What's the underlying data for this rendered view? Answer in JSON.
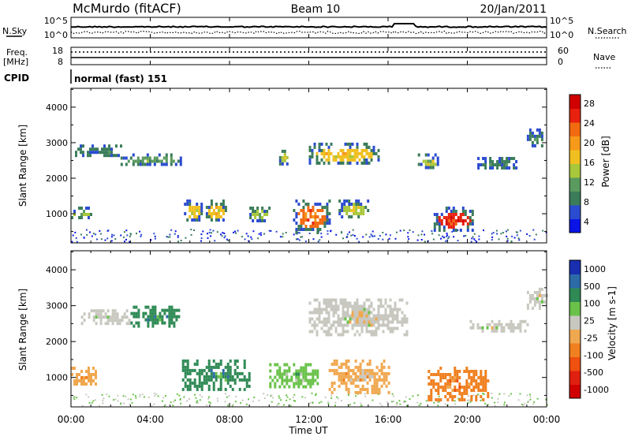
{
  "header": {
    "station": "McMurdo (fitACF)",
    "beam": "Beam 10",
    "date": "20/Jan/2011"
  },
  "noise_panel": {
    "left_label": "N.Sky",
    "right_label": "N.Search",
    "left_ticks": [
      "10^5",
      "10^0"
    ],
    "right_ticks": [
      "10^5",
      "10^0"
    ]
  },
  "freq_panel": {
    "left_label_1": "Freq.",
    "left_label_2": "[MHz]",
    "right_label": "Nave",
    "left_ticks": [
      "18",
      "8"
    ],
    "right_ticks": [
      "60",
      "0"
    ]
  },
  "cpid_panel": {
    "label": "CPID",
    "mode_text": "normal (fast) 151"
  },
  "x_axis": {
    "title": "Time UT",
    "ticks": [
      "00:00",
      "04:00",
      "08:00",
      "12:00",
      "16:00",
      "20:00",
      "00:00"
    ]
  },
  "chart_data": [
    {
      "type": "heatmap",
      "quantity": "power",
      "ylabel": "Slant Range [km]",
      "ylim": [
        180,
        4530
      ],
      "yticks": [
        1000,
        2000,
        3000,
        4000
      ],
      "x_hours": [
        0,
        24
      ],
      "colorbar": {
        "label": "Power [dB]",
        "ticks": [
          4,
          8,
          12,
          16,
          20,
          24,
          28
        ],
        "colors": [
          "#0a14e6",
          "#2b4bd0",
          "#3b7c5a",
          "#5a9a5e",
          "#a8c73a",
          "#f0c020",
          "#f79a1a",
          "#f26a10",
          "#e8200e",
          "#d00000"
        ]
      },
      "echo_regions": [
        {
          "t0": 0.0,
          "t1": 1.0,
          "r0": 900,
          "r1": 1200,
          "level": 12
        },
        {
          "t0": 0.2,
          "t1": 2.5,
          "r0": 2600,
          "r1": 2950,
          "level": 6
        },
        {
          "t0": 2.5,
          "t1": 5.6,
          "r0": 2400,
          "r1": 2700,
          "level": 10
        },
        {
          "t0": 5.7,
          "t1": 6.6,
          "r0": 800,
          "r1": 1400,
          "level": 16
        },
        {
          "t0": 6.8,
          "t1": 7.8,
          "r0": 800,
          "r1": 1400,
          "level": 16
        },
        {
          "t0": 9.0,
          "t1": 10.0,
          "r0": 800,
          "r1": 1200,
          "level": 14
        },
        {
          "t0": 10.5,
          "t1": 11.0,
          "r0": 2400,
          "r1": 2800,
          "level": 12
        },
        {
          "t0": 11.2,
          "t1": 13.0,
          "r0": 500,
          "r1": 1400,
          "level": 24
        },
        {
          "t0": 12.0,
          "t1": 15.5,
          "r0": 2400,
          "r1": 3000,
          "level": 16
        },
        {
          "t0": 13.5,
          "t1": 15.0,
          "r0": 900,
          "r1": 1400,
          "level": 14
        },
        {
          "t0": 17.5,
          "t1": 18.5,
          "r0": 2300,
          "r1": 2700,
          "level": 12
        },
        {
          "t0": 18.3,
          "t1": 20.3,
          "r0": 500,
          "r1": 1200,
          "level": 28
        },
        {
          "t0": 20.5,
          "t1": 22.5,
          "r0": 2300,
          "r1": 2600,
          "level": 8
        },
        {
          "t0": 23.0,
          "t1": 23.8,
          "r0": 2900,
          "r1": 3400,
          "level": 8
        }
      ]
    },
    {
      "type": "heatmap",
      "quantity": "velocity",
      "ylabel": "Slant Range [km]",
      "ylim": [
        180,
        4530
      ],
      "yticks": [
        1000,
        2000,
        3000,
        4000
      ],
      "x_hours": [
        0,
        24
      ],
      "colorbar": {
        "label": "Velocity [m s-1]",
        "ticks": [
          "1000",
          "500",
          "100",
          "25",
          "-25",
          "-100",
          "-500",
          "-1000"
        ],
        "colors": [
          "#1a2fb0",
          "#2d6aa8",
          "#2f8a55",
          "#6ac24a",
          "#c8c8c0",
          "#f0a850",
          "#f08020",
          "#f05010",
          "#e02010",
          "#d00000"
        ]
      },
      "echo_regions": [
        {
          "t0": 0.0,
          "t1": 1.2,
          "r0": 800,
          "r1": 1300,
          "level": "-100"
        },
        {
          "t0": 0.5,
          "t1": 3.0,
          "r0": 2500,
          "r1": 2900,
          "level": "-25"
        },
        {
          "t0": 3.0,
          "t1": 5.5,
          "r0": 2400,
          "r1": 3000,
          "level": "100"
        },
        {
          "t0": 5.6,
          "t1": 9.0,
          "r0": 700,
          "r1": 1500,
          "level": "100"
        },
        {
          "t0": 10.0,
          "t1": 12.5,
          "r0": 700,
          "r1": 1400,
          "level": "25"
        },
        {
          "t0": 12.0,
          "t1": 17.0,
          "r0": 2200,
          "r1": 3200,
          "level": "-25"
        },
        {
          "t0": 13.0,
          "t1": 16.0,
          "r0": 600,
          "r1": 1500,
          "level": "-100"
        },
        {
          "t0": 18.0,
          "t1": 21.0,
          "r0": 400,
          "r1": 1300,
          "level": "-500"
        },
        {
          "t0": 20.0,
          "t1": 23.0,
          "r0": 2300,
          "r1": 2600,
          "level": "-25"
        },
        {
          "t0": 23.0,
          "t1": 24.0,
          "r0": 2900,
          "r1": 3500,
          "level": "-25"
        }
      ]
    }
  ]
}
